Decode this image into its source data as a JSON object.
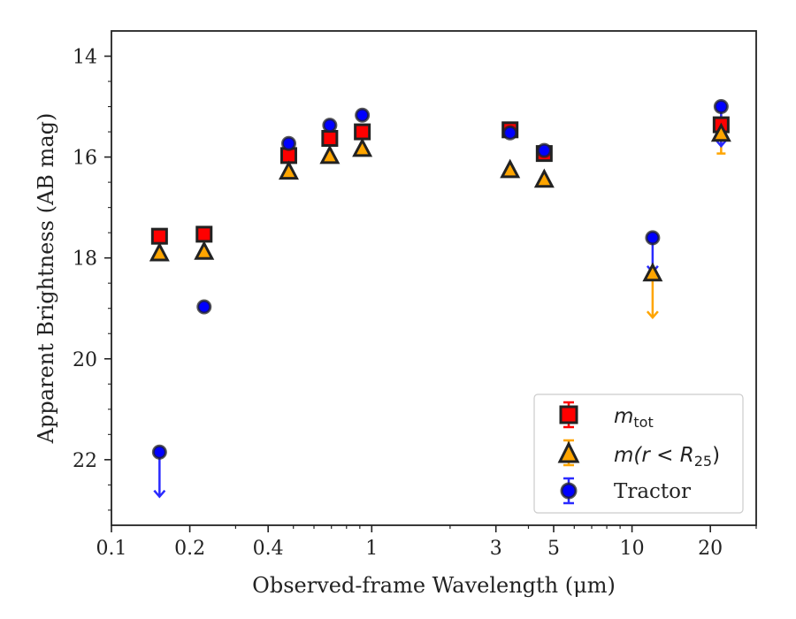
{
  "chart_data": {
    "type": "scatter",
    "xlabel": "Observed-frame Wavelength (μm)",
    "ylabel": "Apparent Brightness (AB mag)",
    "xscale": "log",
    "xlim": [
      0.1,
      30
    ],
    "ylim": [
      23.3,
      13.5
    ],
    "y_inverted": true,
    "xticks": [
      {
        "value": 0.1,
        "label": "0.1"
      },
      {
        "value": 0.2,
        "label": "0.2"
      },
      {
        "value": 0.4,
        "label": "0.4"
      },
      {
        "value": 1,
        "label": "1"
      },
      {
        "value": 3,
        "label": "3"
      },
      {
        "value": 5,
        "label": "5"
      },
      {
        "value": 10,
        "label": "10"
      },
      {
        "value": 20,
        "label": "20"
      }
    ],
    "yticks": [
      {
        "value": 14,
        "label": "14"
      },
      {
        "value": 16,
        "label": "16"
      },
      {
        "value": 18,
        "label": "18"
      },
      {
        "value": 20,
        "label": "20"
      },
      {
        "value": 22,
        "label": "22"
      }
    ],
    "grid": false,
    "legend_position": "lower-right",
    "series": [
      {
        "name": "m_tot",
        "marker": "square",
        "color": "#ff0000",
        "edge": "#222222",
        "errcolor": "#ff0000",
        "points": [
          {
            "x": 0.153,
            "y": 17.57
          },
          {
            "x": 0.227,
            "y": 17.53
          },
          {
            "x": 0.48,
            "y": 15.97
          },
          {
            "x": 0.69,
            "y": 15.63
          },
          {
            "x": 0.92,
            "y": 15.5
          },
          {
            "x": 3.4,
            "y": 15.46
          },
          {
            "x": 4.6,
            "y": 15.93
          },
          {
            "x": 22,
            "y": 15.36
          }
        ]
      },
      {
        "name": "m(r < R25)",
        "marker": "triangle",
        "color": "#ffa500",
        "edge": "#222222",
        "errcolor": "#ffa500",
        "points": [
          {
            "x": 0.153,
            "y": 17.9
          },
          {
            "x": 0.227,
            "y": 17.87
          },
          {
            "x": 0.48,
            "y": 16.28
          },
          {
            "x": 0.69,
            "y": 15.97
          },
          {
            "x": 0.92,
            "y": 15.83
          },
          {
            "x": 3.4,
            "y": 16.25
          },
          {
            "x": 4.6,
            "y": 16.44
          },
          {
            "x": 12,
            "y": 18.3,
            "upper_limit": true,
            "limit_to": 19.2
          },
          {
            "x": 22,
            "y": 15.53,
            "err": 0.4
          }
        ]
      },
      {
        "name": "Tractor",
        "marker": "circle",
        "color": "#0000ff",
        "edge": "#222222",
        "errcolor": "#2a2aff",
        "points": [
          {
            "x": 0.153,
            "y": 21.85,
            "upper_limit": true,
            "limit_to": 22.75
          },
          {
            "x": 0.227,
            "y": 18.97
          },
          {
            "x": 0.48,
            "y": 15.73
          },
          {
            "x": 0.69,
            "y": 15.37
          },
          {
            "x": 0.92,
            "y": 15.17
          },
          {
            "x": 3.4,
            "y": 15.52
          },
          {
            "x": 4.6,
            "y": 15.87
          },
          {
            "x": 12,
            "y": 17.6,
            "upper_limit": true,
            "limit_to": 18.3
          },
          {
            "x": 22,
            "y": 15.0,
            "upper_limit": true,
            "limit_to": 15.8
          }
        ]
      }
    ]
  },
  "legend": {
    "items": [
      {
        "prefix": "m",
        "sub": "tot",
        "rest": ""
      },
      {
        "prefix": "m(r < R",
        "sub": "25",
        "rest": ")"
      },
      {
        "prefix": "Tractor",
        "sub": "",
        "rest": ""
      }
    ]
  }
}
